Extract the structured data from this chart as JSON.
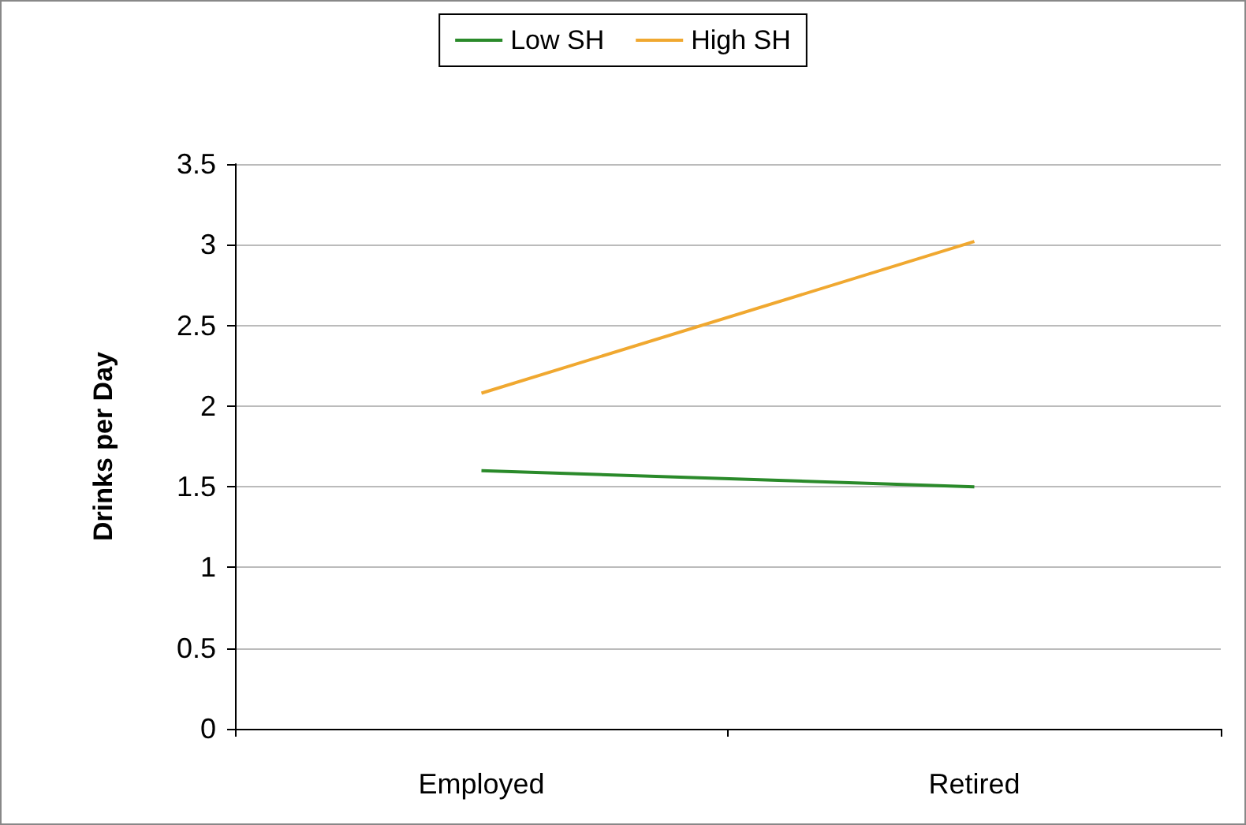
{
  "chart_data": {
    "type": "line",
    "ylabel": "Drinks per Day",
    "categories": [
      "Employed",
      "Retired"
    ],
    "series": [
      {
        "name": "Low SH",
        "color": "#2a8a2a",
        "values": [
          1.6,
          1.5
        ]
      },
      {
        "name": "High SH",
        "color": "#f0a830",
        "values": [
          2.08,
          3.02
        ]
      }
    ],
    "ylim": [
      0,
      3.5
    ],
    "yticks": [
      0,
      0.5,
      1,
      1.5,
      2,
      2.5,
      3,
      3.5
    ],
    "grid": "y",
    "legend": "top",
    "marker": "none",
    "line_style": "solid"
  }
}
